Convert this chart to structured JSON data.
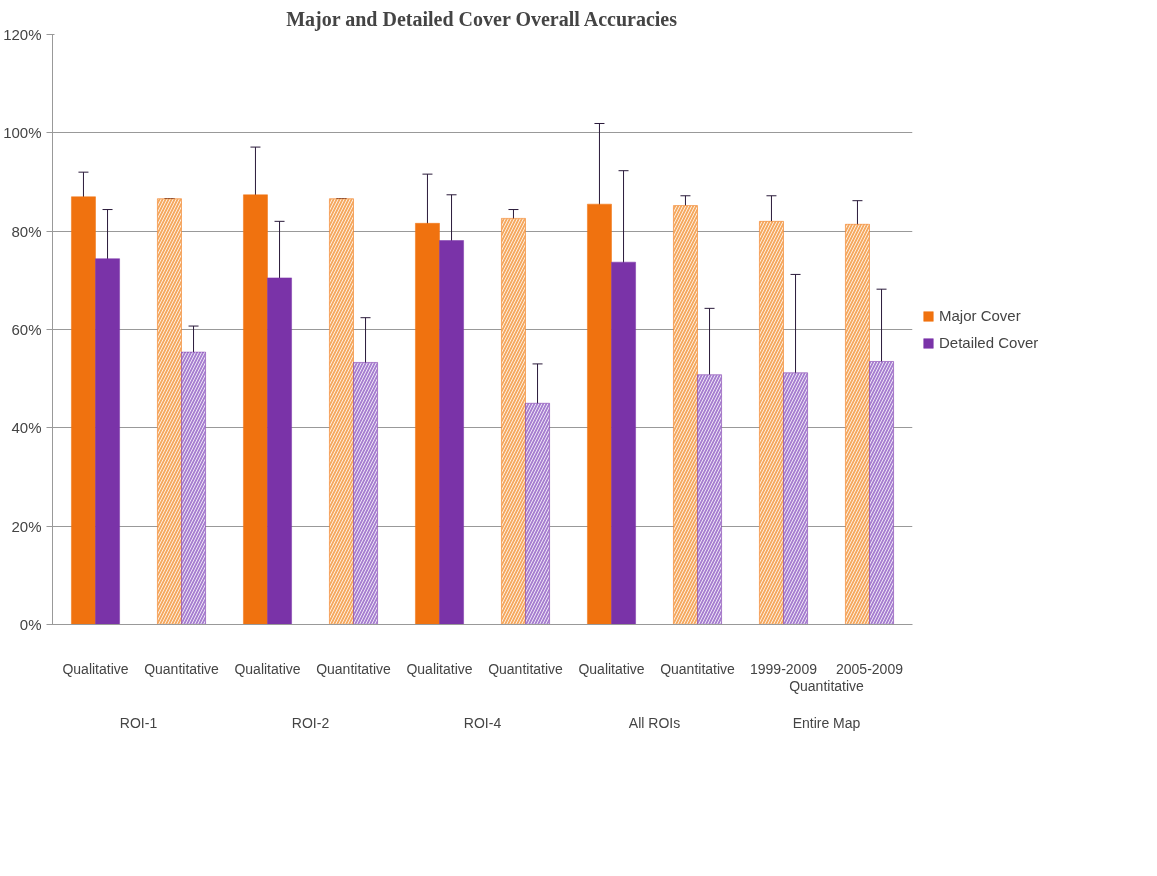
{
  "chart_data": {
    "type": "bar",
    "title": "Major and Detailed Cover Overall Accuracies",
    "categories": [
      "Qualitative",
      "Quantitative",
      "Qualitative",
      "Quantitative",
      "Qualitative",
      "Quantitative",
      "Qualitative",
      "Quantitative",
      "1999-2009",
      "2005-2009"
    ],
    "annotations": [
      "ROI-1",
      "ROI-2",
      "ROI-4",
      "All ROIs",
      "Entire Map",
      "Quantitative"
    ],
    "series": [
      {
        "name": "Major Cover",
        "color": "#f0720f",
        "colors": [
          "#f0720f",
          "#f5a960",
          "#f0720f",
          "#f5a960",
          "#f0720f",
          "#f5a960",
          "#f0720f",
          "#f5a960",
          "#f5a960",
          "#f5a960"
        ],
        "values": [
          87,
          86.6,
          87.4,
          86.6,
          81.6,
          82.6,
          85.5,
          85.2,
          82,
          81.4
        ],
        "errors": [
          5,
          0,
          9.7,
          0,
          10,
          1.8,
          16.4,
          2,
          5.2,
          4.8
        ]
      },
      {
        "name": "Detailed Cover",
        "color": "#7a33a8",
        "colors": [
          "#7a33a8",
          "#a77fd0",
          "#7a33a8",
          "#a77fd0",
          "#7a33a8",
          "#a77fd0",
          "#7a33a8",
          "#a77fd0",
          "#a77fd0",
          "#a77fd0"
        ],
        "values": [
          74.4,
          55.4,
          70.5,
          53.3,
          78.1,
          45,
          73.7,
          50.8,
          51.2,
          53.5
        ],
        "errors": [
          10,
          5.3,
          11.5,
          9.1,
          9.3,
          8,
          18.6,
          13.5,
          20,
          14.7
        ]
      }
    ],
    "ylim": [
      0,
      120
    ],
    "yticks": [
      {
        "value": 0,
        "label": "0%"
      },
      {
        "value": 20,
        "label": "20%"
      },
      {
        "value": 40,
        "label": "40%"
      },
      {
        "value": 60,
        "label": "60%"
      },
      {
        "value": 80,
        "label": "80%"
      },
      {
        "value": 100,
        "label": "100%"
      },
      {
        "value": 120,
        "label": "120%"
      }
    ],
    "grid": "y",
    "legend": "right"
  }
}
